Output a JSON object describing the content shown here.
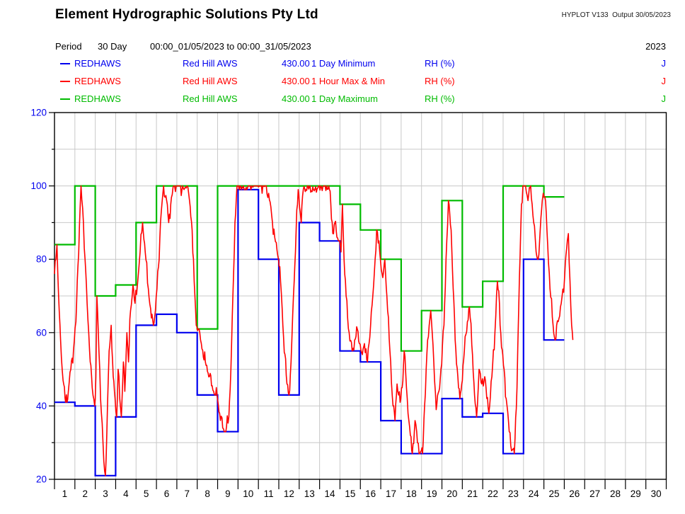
{
  "header": {
    "title": "Element Hydrographic Solutions Pty Ltd",
    "meta": "HYPLOT V133  Output 30/05/2023"
  },
  "period": {
    "label": "Period",
    "duration": "30 Day",
    "range": "00:00_01/05/2023 to 00:00_31/05/2023",
    "year": "2023"
  },
  "legend": {
    "rows": [
      {
        "station": "REDHAWS",
        "site": "Red Hill AWS",
        "number": "430.00",
        "trace": "1 Day Minimum",
        "unit": "RH (%)",
        "quality": "J",
        "color": "#0000EE"
      },
      {
        "station": "REDHAWS",
        "site": "Red Hill AWS",
        "number": "430.00",
        "trace": "1 Hour Max & Min",
        "unit": "RH (%)",
        "quality": "J",
        "color": "#FF0000"
      },
      {
        "station": "REDHAWS",
        "site": "Red Hill AWS",
        "number": "430.00",
        "trace": "1 Day Maximum",
        "unit": "RH (%)",
        "quality": "J",
        "color": "#00BB00"
      }
    ]
  },
  "chart_data": {
    "type": "line",
    "ylabel": "RH (%)",
    "ylim": [
      20,
      120
    ],
    "y_ticks": [
      20,
      40,
      60,
      80,
      100,
      120
    ],
    "y_minor_ticks": [
      30,
      50,
      70,
      90,
      110
    ],
    "x_ticks": [
      1,
      2,
      3,
      4,
      5,
      6,
      7,
      8,
      9,
      10,
      11,
      12,
      13,
      14,
      15,
      16,
      17,
      18,
      19,
      20,
      21,
      22,
      23,
      24,
      25,
      26,
      27,
      28,
      29,
      30
    ],
    "x_unit": "day of May 2023",
    "days_with_data": 25,
    "grid": true,
    "grid_color": "#C8C8C8",
    "axis_color": "#000000",
    "tick_label_color": "#0000EE",
    "day_label_color": "#000000",
    "series": [
      {
        "name": "1 Day Maximum",
        "style": "step",
        "color": "#00BB00",
        "values": [
          84,
          100,
          70,
          73,
          90,
          100,
          100,
          61,
          100,
          100,
          100,
          100,
          100,
          100,
          95,
          88,
          80,
          55,
          66,
          96,
          67,
          74,
          100,
          100,
          97
        ]
      },
      {
        "name": "1 Day Minimum",
        "style": "step",
        "color": "#0000EE",
        "values": [
          41,
          40,
          21,
          37,
          62,
          65,
          60,
          43,
          33,
          99,
          80,
          43,
          90,
          85,
          55,
          52,
          36,
          27,
          27,
          42,
          37,
          38,
          27,
          80,
          58
        ]
      },
      {
        "name": "1 Hour Max & Min",
        "style": "line",
        "color": "#FF0000",
        "points": [
          [
            0,
            76
          ],
          [
            0.07,
            80
          ],
          [
            0.12,
            84
          ],
          [
            0.2,
            70
          ],
          [
            0.3,
            58
          ],
          [
            0.42,
            47
          ],
          [
            0.55,
            41
          ],
          [
            0.68,
            44
          ],
          [
            0.8,
            50
          ],
          [
            0.93,
            55
          ],
          [
            1.05,
            63
          ],
          [
            1.15,
            78
          ],
          [
            1.3,
            100
          ],
          [
            1.42,
            90
          ],
          [
            1.5,
            80
          ],
          [
            1.6,
            68
          ],
          [
            1.72,
            55
          ],
          [
            1.85,
            45
          ],
          [
            1.97,
            40
          ],
          [
            2.03,
            48
          ],
          [
            2.08,
            70
          ],
          [
            2.18,
            55
          ],
          [
            2.3,
            38
          ],
          [
            2.42,
            25
          ],
          [
            2.5,
            21
          ],
          [
            2.6,
            40
          ],
          [
            2.68,
            55
          ],
          [
            2.78,
            62
          ],
          [
            2.88,
            48
          ],
          [
            2.97,
            42
          ],
          [
            3.05,
            37
          ],
          [
            3.12,
            50
          ],
          [
            3.2,
            42
          ],
          [
            3.28,
            37
          ],
          [
            3.38,
            52
          ],
          [
            3.45,
            44
          ],
          [
            3.55,
            60
          ],
          [
            3.63,
            52
          ],
          [
            3.73,
            66
          ],
          [
            3.85,
            73
          ],
          [
            3.95,
            68
          ],
          [
            4.1,
            75
          ],
          [
            4.2,
            82
          ],
          [
            4.32,
            90
          ],
          [
            4.45,
            82
          ],
          [
            4.6,
            72
          ],
          [
            4.75,
            64
          ],
          [
            4.85,
            62
          ],
          [
            4.95,
            66
          ],
          [
            5.1,
            78
          ],
          [
            5.2,
            90
          ],
          [
            5.35,
            100
          ],
          [
            5.5,
            96
          ],
          [
            5.6,
            90
          ],
          [
            5.7,
            95
          ],
          [
            5.85,
            100
          ],
          [
            5.97,
            100
          ],
          [
            6.15,
            100
          ],
          [
            6.35,
            99
          ],
          [
            6.5,
            100
          ],
          [
            6.62,
            96
          ],
          [
            6.75,
            88
          ],
          [
            6.85,
            74
          ],
          [
            6.95,
            62
          ],
          [
            7.05,
            61
          ],
          [
            7.2,
            57
          ],
          [
            7.4,
            52
          ],
          [
            7.6,
            48
          ],
          [
            7.8,
            44
          ],
          [
            7.9,
            43
          ],
          [
            7.97,
            43
          ],
          [
            8.1,
            38
          ],
          [
            8.25,
            34
          ],
          [
            8.4,
            33
          ],
          [
            8.55,
            37
          ],
          [
            8.65,
            50
          ],
          [
            8.75,
            70
          ],
          [
            8.85,
            90
          ],
          [
            8.95,
            100
          ],
          [
            9.1,
            100
          ],
          [
            9.3,
            99
          ],
          [
            9.6,
            100
          ],
          [
            9.9,
            100
          ],
          [
            10.15,
            100
          ],
          [
            10.35,
            100
          ],
          [
            10.5,
            98
          ],
          [
            10.65,
            92
          ],
          [
            10.8,
            86
          ],
          [
            10.95,
            81
          ],
          [
            11.05,
            78
          ],
          [
            11.2,
            62
          ],
          [
            11.4,
            46
          ],
          [
            11.5,
            43
          ],
          [
            11.6,
            52
          ],
          [
            11.72,
            70
          ],
          [
            11.85,
            88
          ],
          [
            11.95,
            99
          ],
          [
            12.05,
            93
          ],
          [
            12.1,
            90
          ],
          [
            12.2,
            99
          ],
          [
            12.4,
            100
          ],
          [
            12.7,
            99
          ],
          [
            12.95,
            100
          ],
          [
            13.2,
            100
          ],
          [
            13.45,
            100
          ],
          [
            13.55,
            95
          ],
          [
            13.65,
            87
          ],
          [
            13.75,
            90
          ],
          [
            13.85,
            86
          ],
          [
            13.95,
            85
          ],
          [
            14.05,
            82
          ],
          [
            14.12,
            95
          ],
          [
            14.2,
            80
          ],
          [
            14.3,
            70
          ],
          [
            14.45,
            60
          ],
          [
            14.6,
            55
          ],
          [
            14.72,
            58
          ],
          [
            14.85,
            61
          ],
          [
            14.95,
            57
          ],
          [
            15.1,
            54
          ],
          [
            15.2,
            57
          ],
          [
            15.35,
            52
          ],
          [
            15.5,
            62
          ],
          [
            15.65,
            73
          ],
          [
            15.8,
            88
          ],
          [
            15.95,
            82
          ],
          [
            16.1,
            75
          ],
          [
            16.2,
            80
          ],
          [
            16.3,
            70
          ],
          [
            16.45,
            55
          ],
          [
            16.6,
            40
          ],
          [
            16.7,
            36
          ],
          [
            16.8,
            46
          ],
          [
            16.95,
            41
          ],
          [
            17.05,
            45
          ],
          [
            17.15,
            55
          ],
          [
            17.3,
            42
          ],
          [
            17.45,
            32
          ],
          [
            17.55,
            27
          ],
          [
            17.68,
            36
          ],
          [
            17.8,
            30
          ],
          [
            17.92,
            27
          ],
          [
            18.05,
            27
          ],
          [
            18.15,
            40
          ],
          [
            18.3,
            58
          ],
          [
            18.45,
            66
          ],
          [
            18.6,
            52
          ],
          [
            18.72,
            39
          ],
          [
            18.85,
            44
          ],
          [
            18.95,
            50
          ],
          [
            19.1,
            62
          ],
          [
            19.2,
            80
          ],
          [
            19.32,
            96
          ],
          [
            19.45,
            88
          ],
          [
            19.55,
            72
          ],
          [
            19.65,
            58
          ],
          [
            19.78,
            48
          ],
          [
            19.88,
            42
          ],
          [
            19.97,
            46
          ],
          [
            20.1,
            55
          ],
          [
            20.25,
            63
          ],
          [
            20.35,
            67
          ],
          [
            20.5,
            54
          ],
          [
            20.6,
            43
          ],
          [
            20.7,
            37
          ],
          [
            20.82,
            50
          ],
          [
            20.95,
            46
          ],
          [
            21.1,
            48
          ],
          [
            21.2,
            42
          ],
          [
            21.3,
            38
          ],
          [
            21.45,
            48
          ],
          [
            21.6,
            60
          ],
          [
            21.72,
            74
          ],
          [
            21.82,
            68
          ],
          [
            21.92,
            56
          ],
          [
            22.05,
            50
          ],
          [
            22.15,
            42
          ],
          [
            22.3,
            33
          ],
          [
            22.45,
            28
          ],
          [
            22.55,
            27
          ],
          [
            22.68,
            45
          ],
          [
            22.8,
            75
          ],
          [
            22.9,
            95
          ],
          [
            22.97,
            100
          ],
          [
            23.1,
            100
          ],
          [
            23.22,
            96
          ],
          [
            23.35,
            100
          ],
          [
            23.5,
            90
          ],
          [
            23.62,
            82
          ],
          [
            23.72,
            80
          ],
          [
            23.82,
            88
          ],
          [
            23.92,
            96
          ],
          [
            23.97,
            98
          ],
          [
            24.05,
            97
          ],
          [
            24.15,
            88
          ],
          [
            24.3,
            72
          ],
          [
            24.45,
            62
          ],
          [
            24.55,
            58
          ],
          [
            24.7,
            63
          ],
          [
            24.85,
            68
          ],
          [
            24.97,
            71
          ],
          [
            25.05,
            79
          ],
          [
            25.15,
            85
          ],
          [
            25.2,
            87
          ],
          [
            25.28,
            74
          ],
          [
            25.36,
            62
          ],
          [
            25.42,
            58
          ]
        ]
      }
    ]
  }
}
